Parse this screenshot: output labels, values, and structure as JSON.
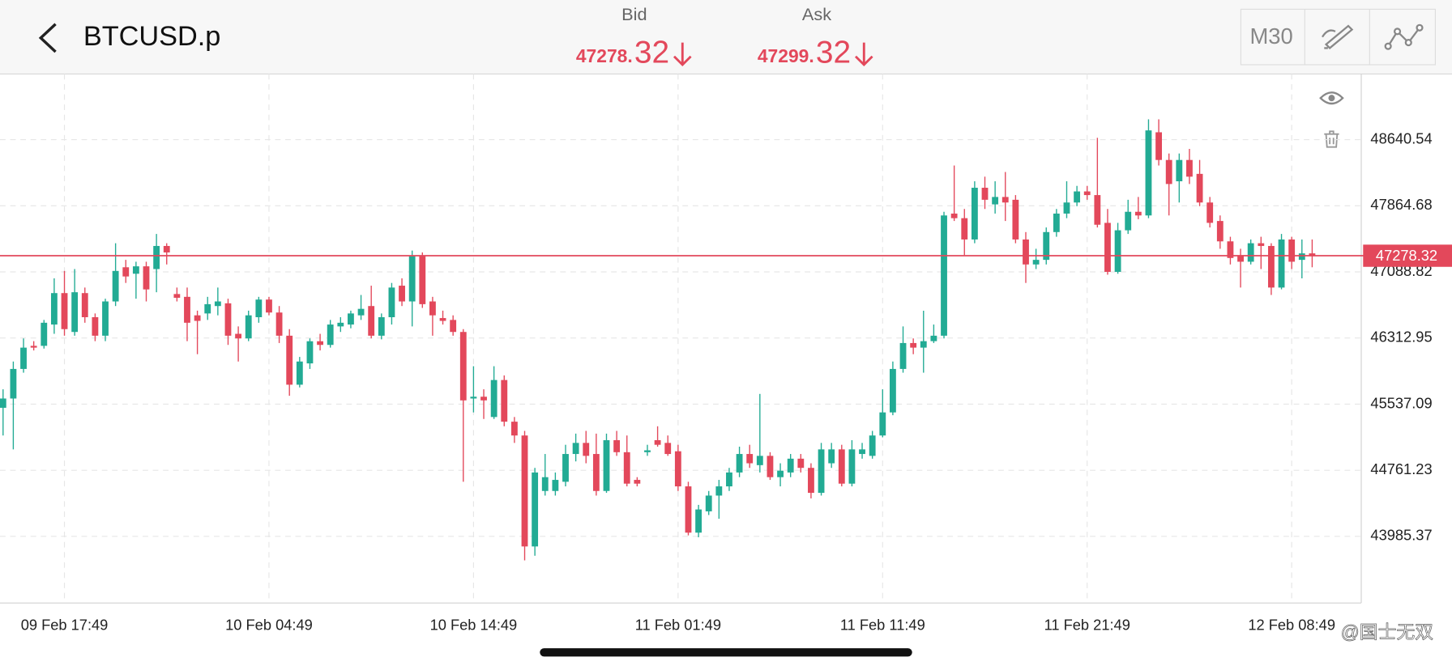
{
  "header": {
    "symbol": "BTCUSD.p",
    "bid": {
      "label": "Bid",
      "price_main": "47278.",
      "price_fraction": "32"
    },
    "ask": {
      "label": "Ask",
      "price_main": "47299.",
      "price_fraction": "32"
    },
    "timeframe": "M30"
  },
  "watermark": "@国士无双",
  "chart_data": {
    "type": "candlestick",
    "up_color": "#22ab94",
    "down_color": "#e3485b",
    "grid": true,
    "last_price": 47278.32,
    "last_price_color": "#e3485b",
    "xlim": [
      -0.3,
      132.8
    ],
    "xticks": [
      {
        "value": 6,
        "label": "09 Feb 17:49"
      },
      {
        "value": 26,
        "label": "10 Feb 04:49"
      },
      {
        "value": 46,
        "label": "10 Feb 14:49"
      },
      {
        "value": 66,
        "label": "11 Feb 01:49"
      },
      {
        "value": 86,
        "label": "11 Feb 11:49"
      },
      {
        "value": 106,
        "label": "11 Feb 21:49"
      },
      {
        "value": 126,
        "label": "12 Feb 08:49"
      }
    ],
    "ylim": [
      43204,
      49411
    ],
    "yticks": [
      48640.54,
      47864.68,
      47088.82,
      46312.95,
      45537.09,
      44761.23,
      43985.37
    ],
    "open": [
      45494,
      45603,
      45950,
      46221,
      46221,
      46471,
      46840,
      46384,
      46840,
      46557,
      46340,
      46742,
      47143,
      47067,
      47154,
      47122,
      47393,
      46829,
      46796,
      46579,
      46601,
      46688,
      46720,
      46362,
      46308,
      46557,
      46764,
      46612,
      46340,
      45765,
      46015,
      46275,
      46232,
      46449,
      46471,
      46579,
      46688,
      46340,
      46557,
      46927,
      46742,
      47273,
      46742,
      46547,
      46525,
      46384,
      45603,
      45624,
      45386,
      45820,
      45331,
      45169,
      43867,
      44518,
      44518,
      44626,
      44952,
      45082,
      44952,
      44518,
      45114,
      44973,
      44648,
      44973,
      45114,
      45082,
      44984,
      44572,
      44029,
      44279,
      44464,
      44572,
      44735,
      44952,
      44821,
      44930,
      44680,
      44735,
      44897,
      44789,
      44496,
      44843,
      45006,
      44604,
      44952,
      44930,
      45169,
      45440,
      45950,
      46254,
      46200,
      46276,
      46340,
      47773,
      47719,
      47469,
      48076,
      47881,
      47968,
      47935,
      47469,
      47176,
      47230,
      47556,
      47773,
      47903,
      48033,
      47990,
      47664,
      47089,
      47577,
      47794,
      47751,
      48727,
      48402,
      48152,
      48402,
      48239,
      47903,
      47686,
      47447,
      47285,
      47208,
      47425,
      47393,
      46905,
      47469,
      47230,
      47306
    ],
    "high": [
      45711,
      46037,
      46308,
      46276,
      46525,
      47013,
      47100,
      47122,
      46905,
      46601,
      46774,
      47425,
      47230,
      47208,
      47208,
      47534,
      47425,
      46905,
      46905,
      46634,
      46796,
      46905,
      46774,
      46449,
      46634,
      46796,
      46796,
      46688,
      46417,
      46091,
      46308,
      46362,
      46525,
      46557,
      46634,
      46818,
      46927,
      46601,
      46959,
      47013,
      47339,
      47317,
      46796,
      46634,
      46579,
      46417,
      45982,
      45711,
      45982,
      45874,
      45386,
      45223,
      44789,
      44952,
      44735,
      45060,
      45191,
      45223,
      45191,
      45191,
      45223,
      45169,
      44680,
      45060,
      45277,
      45169,
      45060,
      44626,
      44355,
      44518,
      44648,
      44789,
      45038,
      45060,
      45657,
      44973,
      44843,
      44952,
      44952,
      44843,
      45082,
      45082,
      45060,
      45114,
      45082,
      45223,
      45711,
      46037,
      46449,
      46308,
      46633,
      46471,
      47794,
      48337,
      47827,
      48152,
      48206,
      48152,
      48261,
      47990,
      47556,
      47360,
      47610,
      47827,
      48152,
      48098,
      48098,
      48662,
      47827,
      47664,
      47935,
      47968,
      48879,
      48879,
      48478,
      48478,
      48532,
      48402,
      47968,
      47751,
      47501,
      47360,
      47469,
      47501,
      47425,
      47534,
      47501,
      47469,
      47469
    ],
    "low": [
      45169,
      45006,
      45906,
      46167,
      46189,
      46362,
      46340,
      46340,
      46492,
      46276,
      46276,
      46688,
      46959,
      46774,
      46742,
      46850,
      47176,
      46742,
      46276,
      46123,
      46525,
      46579,
      46232,
      46037,
      46276,
      46492,
      46579,
      46254,
      45635,
      45733,
      45950,
      46167,
      46200,
      46384,
      46427,
      46525,
      46308,
      46297,
      46471,
      46688,
      46449,
      46666,
      46340,
      46471,
      46340,
      44626,
      45440,
      45363,
      45363,
      45277,
      45082,
      43704,
      43758,
      44464,
      44464,
      44572,
      44865,
      44843,
      44464,
      44496,
      44930,
      44572,
      44572,
      44930,
      45038,
      44930,
      44518,
      43997,
      43975,
      44236,
      44192,
      44518,
      44680,
      44789,
      44735,
      44648,
      44572,
      44680,
      44735,
      44431,
      44464,
      44789,
      44572,
      44572,
      44897,
      44897,
      45147,
      45407,
      45906,
      46123,
      45906,
      46254,
      46308,
      47686,
      47285,
      47425,
      47827,
      47773,
      47686,
      47425,
      46959,
      47122,
      47176,
      47501,
      47719,
      47860,
      47935,
      47610,
      47056,
      47067,
      47534,
      47707,
      47719,
      48337,
      47751,
      47903,
      48120,
      47860,
      47610,
      47360,
      47176,
      46905,
      47176,
      47122,
      46818,
      46884,
      47122,
      47013,
      47143
    ],
    "close": [
      45603,
      45950,
      46200,
      46200,
      46492,
      46840,
      46417,
      46850,
      46557,
      46340,
      46742,
      47100,
      47035,
      47154,
      46883,
      47393,
      47317,
      46785,
      46492,
      46514,
      46710,
      46742,
      46340,
      46308,
      46579,
      46764,
      46612,
      46340,
      45765,
      46037,
      46275,
      46232,
      46471,
      46492,
      46601,
      46655,
      46340,
      46557,
      46905,
      46742,
      47273,
      46710,
      46579,
      46514,
      46384,
      45581,
      45624,
      45581,
      45820,
      45331,
      45169,
      43867,
      44735,
      44680,
      44648,
      44952,
      45082,
      44930,
      44518,
      45114,
      44973,
      44604,
      44604,
      44995,
      45060,
      44952,
      44572,
      44029,
      44301,
      44464,
      44572,
      44735,
      44952,
      44843,
      44930,
      44680,
      44756,
      44897,
      44789,
      44496,
      45006,
      45006,
      44604,
      45006,
      45006,
      45169,
      45440,
      45950,
      46254,
      46200,
      46276,
      46340,
      47751,
      47719,
      47469,
      48076,
      47935,
      47968,
      47903,
      47469,
      47176,
      47230,
      47556,
      47773,
      47903,
      48033,
      47990,
      47642,
      47089,
      47577,
      47794,
      47751,
      48749,
      48402,
      48120,
      48402,
      48206,
      47903,
      47664,
      47447,
      47252,
      47208,
      47425,
      47393,
      46905,
      47469,
      47208,
      47306,
      47278
    ]
  }
}
